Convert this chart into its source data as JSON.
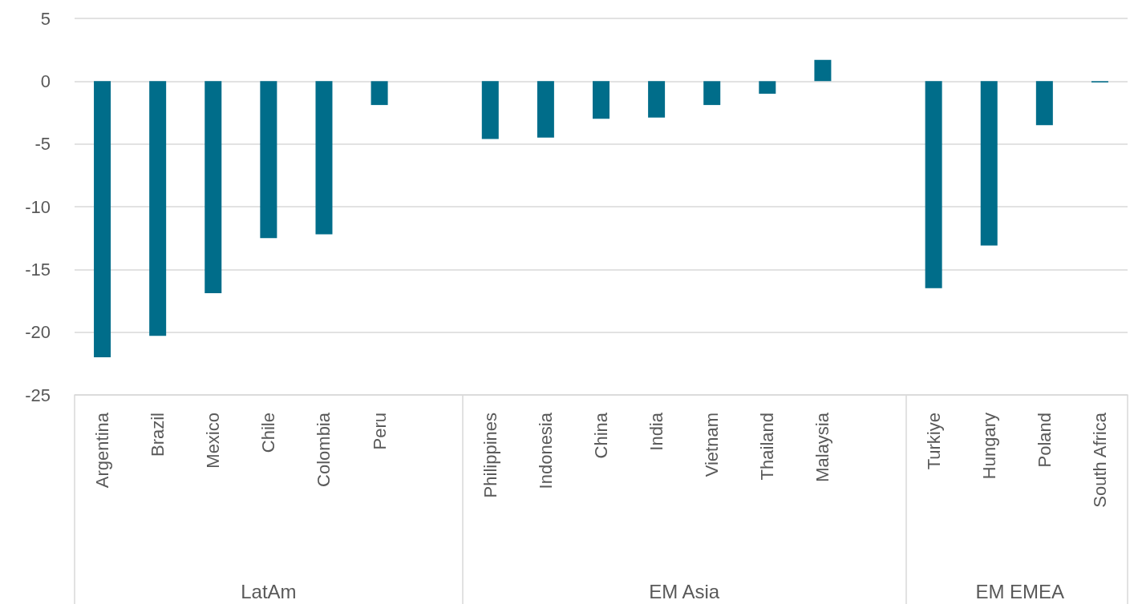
{
  "chart_data": {
    "type": "bar",
    "categories": [
      "Argentina",
      "Brazil",
      "Mexico",
      "Chile",
      "Colombia",
      "Peru",
      null,
      "Philippines",
      "Indonesia",
      "China",
      "India",
      "Vietnam",
      "Thailand",
      "Malaysia",
      null,
      "Turkiye",
      "Hungary",
      "Poland",
      "South Africa"
    ],
    "values": [
      -22.0,
      -20.3,
      -16.9,
      -12.5,
      -12.2,
      -1.9,
      null,
      -4.6,
      -4.5,
      -3.0,
      -2.9,
      -1.9,
      -1.0,
      1.7,
      null,
      -16.5,
      -13.1,
      -3.5,
      -0.1
    ],
    "color": "#006d8a",
    "ylim": [
      -25,
      5
    ],
    "yticks": [
      -25,
      -20,
      -15,
      -10,
      -5,
      0,
      5
    ],
    "grid": "y",
    "annotations": [
      "LatAm",
      "EM Asia",
      "EM EMEA"
    ]
  }
}
